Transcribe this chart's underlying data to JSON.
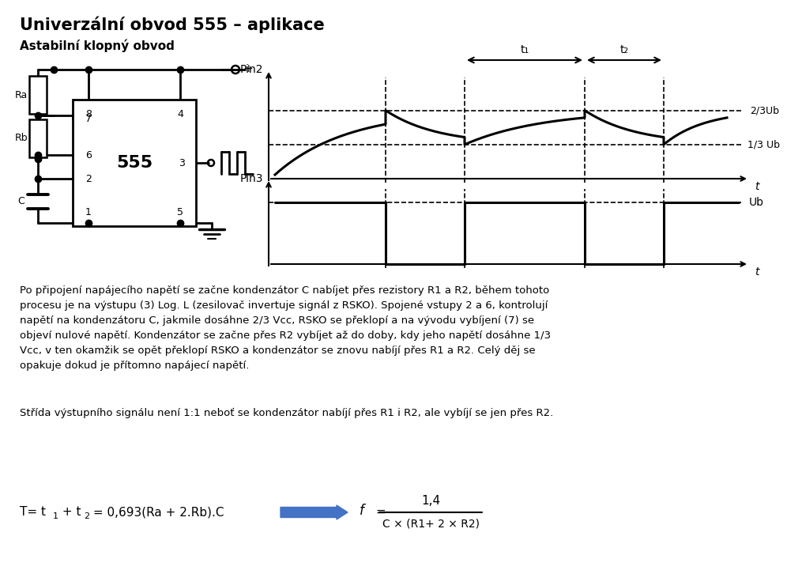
{
  "title": "Univerzální obvod 555 – aplikace",
  "subtitle": "Astabilní klopný obvod",
  "bg_color": "#ffffff",
  "body_text1": "Po připojení napájecího napětí se začne kondenzátor C nabíjet přes rezistory R1 a R2, během tohoto\nprocesu je na výstupu (3) Log. L (zesilovač invertuje signál z RSKO). Spojené vstupy 2 a 6, kontrolují\nnapětí na kondenzátoru C, jakmile dosáhne 2/3 Vcc, RSKO se překlopí a na vývodu vybíjení (7) se\nobjeví nulové napětí. Kondenzátor se začne přes R2 vybíjet až do doby, kdy jeho napětí dosáhne 1/3\nVcc, v ten okamžik se opět překlopí RSKO a kondenzátor se znovu nabíjí přes R1 a R2. Celý děj se\nopakuje dokud je přítomno napájecí napětí.",
  "body_text2": "Střída výstupního signálu není 1:1 neboť se kondenzátor nabíjí přes R1 i R2, ale vybíjí se jen přes R2.",
  "pin2_label": "Pin2",
  "pin3_label": "Pin3",
  "label_2_3_Ub": "2/3Ub",
  "label_1_3_Ub": "1/3 Ub",
  "label_Ub": "Ub",
  "label_t": "t",
  "label_t1": "t₁",
  "label_t2": "t₂",
  "ic_label": "555",
  "Ra_label": "Ra",
  "Rb_label": "Rb",
  "C_label": "C",
  "arrow_color": "#4472C4",
  "formula_T": "T= t",
  "formula_rest": " = 0,693(Ra + 2.Rb).C",
  "formula_num": "1,4",
  "formula_den": "C × (R1+ 2 × R2)"
}
